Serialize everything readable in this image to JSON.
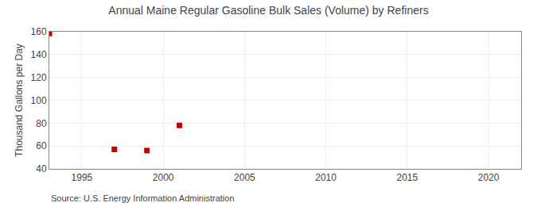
{
  "chart_data": {
    "type": "scatter",
    "title": "Annual Maine Regular Gasoline Bulk Sales (Volume) by Refiners",
    "ylabel": "Thousand Gallons per Day",
    "annotations": [
      "Source: U.S. Energy Information Administration"
    ],
    "x": [
      1993,
      1997,
      1999,
      2001
    ],
    "values": [
      158.4,
      57.0,
      56.0,
      78.0
    ],
    "color": "#cc0000",
    "marker": "square",
    "xlim": [
      1993,
      2022
    ],
    "xticks": [
      1995,
      2000,
      2005,
      2010,
      2015,
      2020
    ],
    "ylim": [
      40,
      160
    ],
    "yticks": [
      40,
      60,
      80,
      100,
      120,
      140,
      160
    ],
    "grid": true
  }
}
